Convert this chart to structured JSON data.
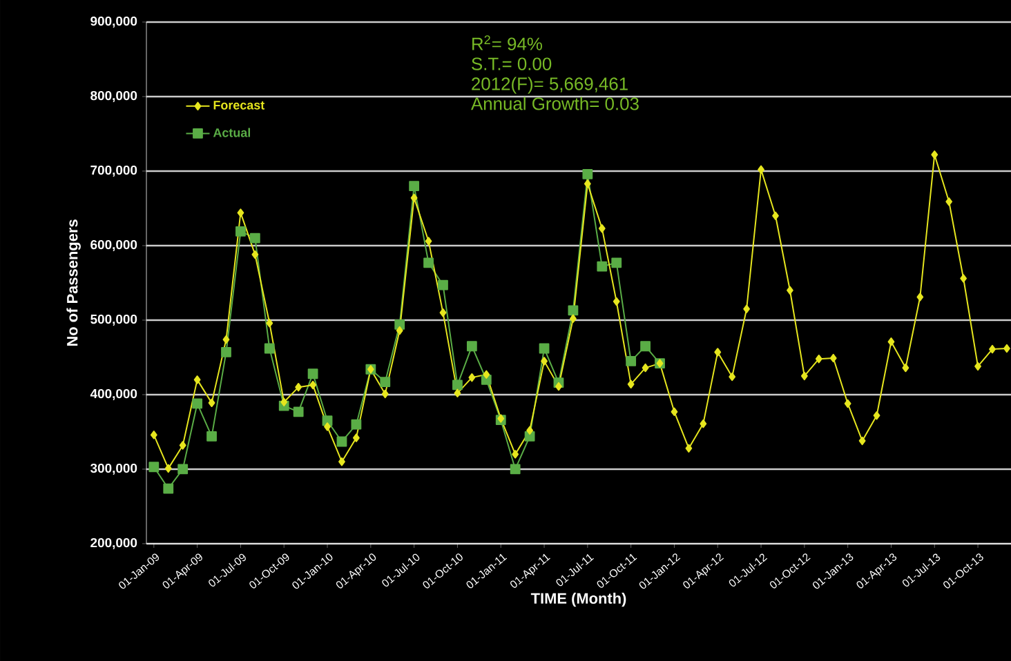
{
  "chart_data": {
    "type": "line",
    "xlabel": "TIME (Month)",
    "ylabel": "No of Passengers",
    "x": [
      "2009-01-01",
      "2009-02-01",
      "2009-03-01",
      "2009-04-01",
      "2009-05-01",
      "2009-06-01",
      "2009-07-01",
      "2009-08-01",
      "2009-09-01",
      "2009-10-01",
      "2009-11-01",
      "2009-12-01",
      "2010-01-01",
      "2010-02-01",
      "2010-03-01",
      "2010-04-01",
      "2010-05-01",
      "2010-06-01",
      "2010-07-01",
      "2010-08-01",
      "2010-09-01",
      "2010-10-01",
      "2010-11-01",
      "2010-12-01",
      "2011-01-01",
      "2011-02-01",
      "2011-03-01",
      "2011-04-01",
      "2011-05-01",
      "2011-06-01",
      "2011-07-01",
      "2011-08-01",
      "2011-09-01",
      "2011-10-01",
      "2011-11-01",
      "2011-12-01",
      "2012-01-01",
      "2012-02-01",
      "2012-03-01",
      "2012-04-01",
      "2012-05-01",
      "2012-06-01",
      "2012-07-01",
      "2012-08-01",
      "2012-09-01",
      "2012-10-01",
      "2012-11-01",
      "2012-12-01",
      "2013-01-01",
      "2013-02-01",
      "2013-03-01",
      "2013-04-01",
      "2013-05-01",
      "2013-06-01",
      "2013-07-01",
      "2013-08-01",
      "2013-09-01",
      "2013-10-01",
      "2013-11-01",
      "2013-12-01"
    ],
    "series": [
      {
        "name": "Forecast",
        "color": "#e6e61e",
        "marker": "diamond",
        "values": [
          346000,
          301000,
          332000,
          420000,
          389000,
          474000,
          644000,
          588000,
          496000,
          390000,
          410000,
          413000,
          357000,
          310000,
          342000,
          434000,
          401000,
          486000,
          664000,
          606000,
          510000,
          402000,
          423000,
          427000,
          368000,
          320000,
          352000,
          445000,
          411000,
          502000,
          683000,
          623000,
          525000,
          414000,
          436000,
          442000,
          377000,
          328000,
          361000,
          457000,
          424000,
          515000,
          702000,
          640000,
          540000,
          425000,
          448000,
          449000,
          388000,
          338000,
          372000,
          471000,
          436000,
          531000,
          722000,
          659000,
          556000,
          438000,
          461000,
          462000
        ]
      },
      {
        "name": "Actual",
        "color": "#5aad46",
        "marker": "square",
        "values": [
          303000,
          274000,
          300000,
          388000,
          344000,
          457000,
          619000,
          610000,
          462000,
          385000,
          377000,
          428000,
          365000,
          337000,
          360000,
          434000,
          417000,
          494000,
          680000,
          577000,
          547000,
          413000,
          465000,
          420000,
          366000,
          300000,
          344000,
          462000,
          416000,
          513000,
          696000,
          572000,
          577000,
          445000,
          465000,
          442000,
          null,
          null,
          null,
          null,
          null,
          null,
          null,
          null,
          null,
          null,
          null,
          null,
          null,
          null,
          null,
          null,
          null,
          null,
          null,
          null,
          null,
          null,
          null,
          null
        ]
      }
    ],
    "xlim": [
      "2008-12-16",
      "2013-12-10"
    ],
    "xticks": [
      {
        "value": "2009-01-01",
        "label": "01-Jan-09"
      },
      {
        "value": "2009-04-01",
        "label": "01-Apr-09"
      },
      {
        "value": "2009-07-01",
        "label": "01-Jul-09"
      },
      {
        "value": "2009-10-01",
        "label": "01-Oct-09"
      },
      {
        "value": "2010-01-01",
        "label": "01-Jan-10"
      },
      {
        "value": "2010-04-01",
        "label": "01-Apr-10"
      },
      {
        "value": "2010-07-01",
        "label": "01-Jul-10"
      },
      {
        "value": "2010-10-01",
        "label": "01-Oct-10"
      },
      {
        "value": "2011-01-01",
        "label": "01-Jan-11"
      },
      {
        "value": "2011-04-01",
        "label": "01-Apr-11"
      },
      {
        "value": "2011-07-01",
        "label": "01-Jul-11"
      },
      {
        "value": "2011-10-01",
        "label": "01-Oct-11"
      },
      {
        "value": "2012-01-01",
        "label": "01-Jan-12"
      },
      {
        "value": "2012-04-01",
        "label": "01-Apr-12"
      },
      {
        "value": "2012-07-01",
        "label": "01-Jul-12"
      },
      {
        "value": "2012-10-01",
        "label": "01-Oct-12"
      },
      {
        "value": "2013-01-01",
        "label": "01-Jan-13"
      },
      {
        "value": "2013-04-01",
        "label": "01-Apr-13"
      },
      {
        "value": "2013-07-01",
        "label": "01-Jul-13"
      },
      {
        "value": "2013-10-01",
        "label": "01-Oct-13"
      }
    ],
    "ylim": [
      200000,
      900000
    ],
    "yticks": [
      {
        "value": 200000,
        "label": "200,000"
      },
      {
        "value": 300000,
        "label": "300,000"
      },
      {
        "value": 400000,
        "label": "400,000"
      },
      {
        "value": 500000,
        "label": "500,000"
      },
      {
        "value": 600000,
        "label": "600,000"
      },
      {
        "value": 700000,
        "label": "700,000"
      },
      {
        "value": 800000,
        "label": "800,000"
      },
      {
        "value": 900000,
        "label": "900,000"
      }
    ],
    "grid": "y",
    "legend": "top left",
    "annotations": [
      "R$^{2}$= 94%",
      "S.T.= 0.00",
      "2012(F)= 5,669,461",
      "Annual Growth= 0.03"
    ]
  }
}
